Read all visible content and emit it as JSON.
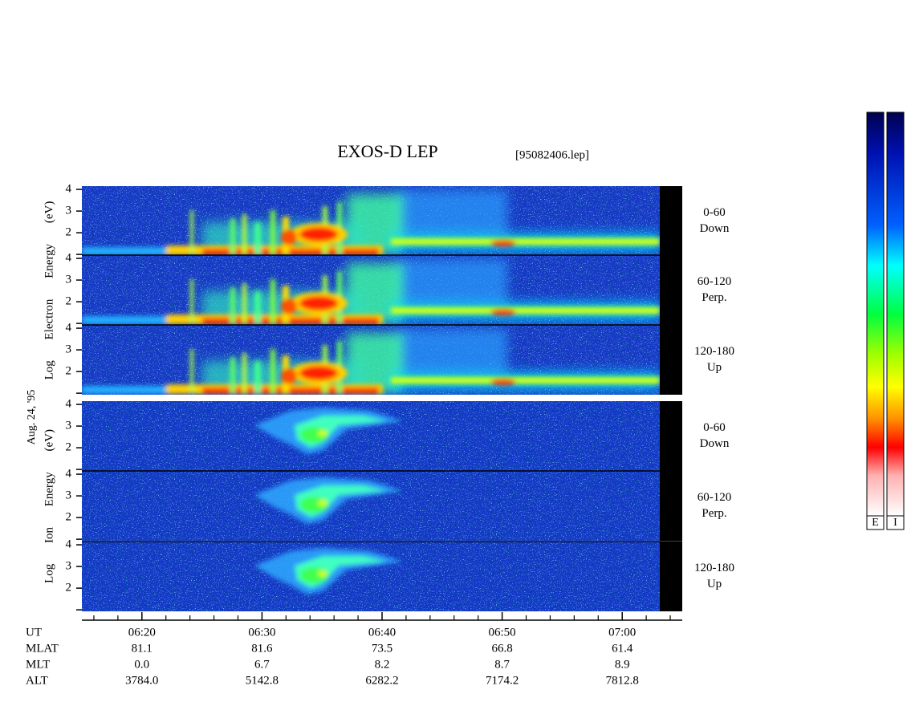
{
  "chart_data": {
    "type": "spectrogram",
    "title": "EXOS-D LEP",
    "file": "[95082406.lep]",
    "date_label": "Aug. 24, '95",
    "xlim": [
      15,
      65
    ],
    "xticks": [
      {
        "value": 20,
        "label": "06:20"
      },
      {
        "value": 30,
        "label": "06:30"
      },
      {
        "value": 40,
        "label": "06:40"
      },
      {
        "value": 50,
        "label": "06:50"
      },
      {
        "value": 60,
        "label": "07:00"
      }
    ],
    "xticks_minor": [
      16,
      18,
      22,
      24,
      26,
      28,
      32,
      34,
      36,
      38,
      42,
      44,
      46,
      48,
      52,
      54,
      56,
      58,
      62,
      64
    ],
    "ylim": [
      0.93,
      4.15
    ],
    "yticks": [
      {
        "value": 1,
        "label": null
      },
      2,
      3,
      4
    ],
    "groups": [
      {
        "ylabel": "Log Electron Energy (eV)",
        "kind": "electron",
        "panels": [
          {
            "label": [
              "0-60",
              "Down"
            ]
          },
          {
            "label": [
              "60-120",
              "Perp."
            ]
          },
          {
            "label": [
              "120-180",
              "Up"
            ]
          }
        ]
      },
      {
        "ylabel": "Log Ion Energy (eV)",
        "kind": "ion",
        "panels": [
          {
            "label": [
              "0-60",
              "Down"
            ]
          },
          {
            "label": [
              "60-120",
              "Perp."
            ]
          },
          {
            "label": [
              "120-180",
              "Up"
            ]
          }
        ]
      }
    ],
    "colorbars": [
      "E",
      "I"
    ],
    "ephemeris": {
      "rows": [
        {
          "name": "UT"
        },
        {
          "name": "MLAT",
          "values": [
            "81.1",
            "81.6",
            "73.5",
            "66.8",
            "61.4"
          ]
        },
        {
          "name": "MLT",
          "values": [
            "0.0",
            "6.7",
            "8.2",
            "8.7",
            "8.9"
          ]
        },
        {
          "name": "ALT",
          "values": [
            "3784.0",
            "5142.8",
            "6282.2",
            "7174.2",
            "7812.8"
          ]
        }
      ]
    }
  }
}
